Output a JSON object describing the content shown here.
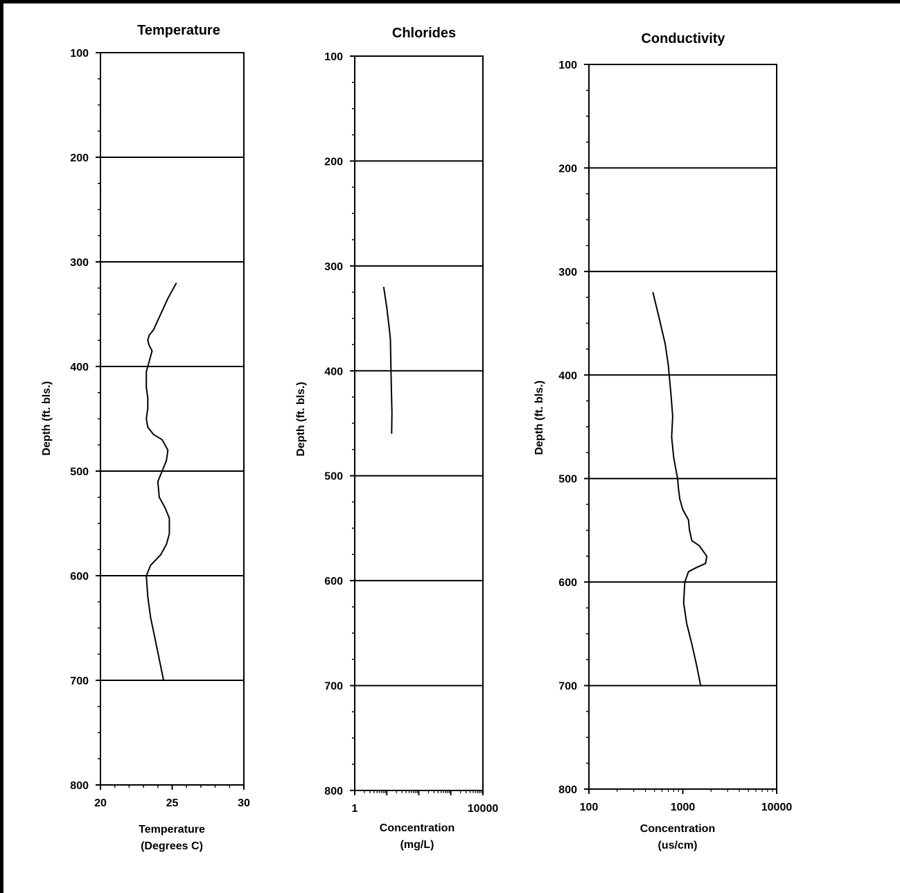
{
  "chart_data": [
    {
      "type": "line",
      "title": "Temperature",
      "xlabel": [
        "Temperature",
        "(Degrees C)"
      ],
      "ylabel": "Depth (ft. bls.)",
      "xscale": "linear",
      "xlim": [
        20,
        30
      ],
      "ylim": [
        100,
        800
      ],
      "y_inverted": true,
      "x_ticks": [
        20,
        25,
        30
      ],
      "x_tick_labels": [
        "20",
        "25",
        "30"
      ],
      "y_ticks": [
        100,
        200,
        300,
        400,
        500,
        600,
        700,
        800
      ],
      "y_tick_labels": [
        "100",
        "200",
        "300",
        "400",
        "500",
        "600",
        "700",
        "800"
      ],
      "gridlines_y": [
        200,
        300,
        400,
        500,
        600,
        700
      ],
      "series": [
        {
          "x": [
            25.3,
            24.7,
            24.2,
            23.7,
            23.4,
            23.3,
            23.4,
            23.6,
            23.4,
            23.2,
            23.2,
            23.3,
            23.3,
            23.2,
            23.3,
            23.7,
            24.3,
            24.7,
            24.6,
            24.3,
            24.0,
            24.1,
            24.5,
            24.8,
            24.8,
            24.6,
            24.2,
            23.5,
            23.2,
            23.3,
            23.5,
            23.8,
            24.1,
            24.4
          ],
          "y": [
            320,
            335,
            350,
            365,
            370,
            375,
            380,
            385,
            395,
            405,
            420,
            430,
            440,
            450,
            458,
            465,
            470,
            480,
            490,
            500,
            510,
            525,
            535,
            545,
            560,
            570,
            580,
            590,
            600,
            620,
            640,
            660,
            680,
            700
          ]
        }
      ]
    },
    {
      "type": "line",
      "title": "Chlorides",
      "xlabel": [
        "Concentration",
        "(mg/L)"
      ],
      "ylabel": "Depth (ft. bls.)",
      "xscale": "log",
      "xlim": [
        1,
        10000
      ],
      "ylim": [
        100,
        800
      ],
      "y_inverted": true,
      "x_ticks": [
        1,
        10000
      ],
      "x_tick_labels": [
        "1",
        "10000"
      ],
      "y_ticks": [
        100,
        200,
        300,
        400,
        500,
        600,
        700,
        800
      ],
      "y_tick_labels": [
        "100",
        "200",
        "300",
        "400",
        "500",
        "600",
        "700",
        "800"
      ],
      "gridlines_y": [
        200,
        300,
        400,
        500,
        600,
        700
      ],
      "series": [
        {
          "x": [
            8,
            10,
            12,
            13,
            13.5,
            14,
            14.5,
            14.2
          ],
          "y": [
            320,
            340,
            360,
            370,
            400,
            420,
            440,
            460
          ]
        }
      ]
    },
    {
      "type": "line",
      "title": "Conductivity",
      "xlabel": [
        "Concentration",
        "(us/cm)"
      ],
      "ylabel": "Depth (ft. bls.)",
      "xscale": "log",
      "xlim": [
        100,
        10000
      ],
      "ylim": [
        100,
        800
      ],
      "y_inverted": true,
      "x_ticks": [
        100,
        1000,
        10000
      ],
      "x_tick_labels": [
        "100",
        "1000",
        "10000"
      ],
      "y_ticks": [
        100,
        200,
        300,
        400,
        500,
        600,
        700,
        800
      ],
      "y_tick_labels": [
        "100",
        "200",
        "300",
        "400",
        "500",
        "600",
        "700",
        "800"
      ],
      "gridlines_y": [
        200,
        300,
        400,
        500,
        600,
        700
      ],
      "series": [
        {
          "x": [
            480,
            560,
            650,
            700,
            750,
            780,
            760,
            800,
            880,
            900,
            930,
            1000,
            1150,
            1180,
            1250,
            1500,
            1800,
            1750,
            1400,
            1150,
            1050,
            1020,
            1100,
            1250,
            1400,
            1550
          ],
          "y": [
            320,
            345,
            370,
            390,
            420,
            440,
            460,
            480,
            500,
            510,
            520,
            530,
            540,
            550,
            560,
            565,
            575,
            582,
            586,
            590,
            600,
            620,
            640,
            660,
            680,
            700
          ]
        }
      ]
    }
  ]
}
